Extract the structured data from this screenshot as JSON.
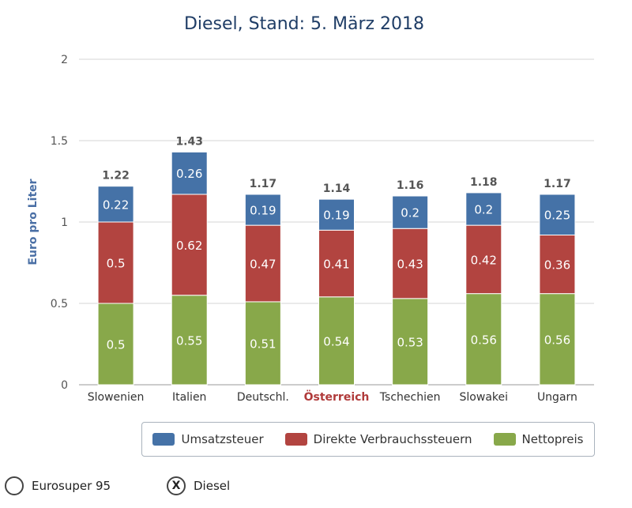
{
  "chart_data": {
    "type": "bar",
    "stacked": true,
    "title": "Diesel, Stand: 5. März 2018",
    "ylabel": "Euro pro Liter",
    "ylim": [
      0,
      2
    ],
    "yticks": [
      "0",
      "0.5",
      "1",
      "1.5",
      "2"
    ],
    "categories": [
      "Slowenien",
      "Italien",
      "Deutschl.",
      "Österreich",
      "Tschechien",
      "Slowakei",
      "Ungarn"
    ],
    "highlight_category": "Österreich",
    "totals": [
      "1.22",
      "1.43",
      "1.17",
      "1.14",
      "1.16",
      "1.18",
      "1.17"
    ],
    "grid": true,
    "legend_position": "bottom-right",
    "series": [
      {
        "name": "Nettopreis",
        "color": "#88a84a",
        "values": [
          0.5,
          0.55,
          0.51,
          0.54,
          0.53,
          0.56,
          0.56
        ]
      },
      {
        "name": "Direkte Verbrauchssteuern",
        "color": "#b24440",
        "values": [
          0.5,
          0.62,
          0.47,
          0.41,
          0.43,
          0.42,
          0.36
        ]
      },
      {
        "name": "Umsatzsteuer",
        "color": "#4572a7",
        "values": [
          0.22,
          0.26,
          0.19,
          0.19,
          0.2,
          0.2,
          0.25
        ]
      }
    ]
  },
  "legend": {
    "items": [
      {
        "label": "Umsatzsteuer",
        "color": "#4572a7"
      },
      {
        "label": "Direkte Verbrauchssteuern",
        "color": "#b24440"
      },
      {
        "label": "Nettopreis",
        "color": "#88a84a"
      }
    ]
  },
  "fuel_selector": {
    "option1": {
      "label": "Eurosuper 95",
      "mark": ""
    },
    "option2": {
      "label": "Diesel",
      "mark": "X"
    }
  }
}
